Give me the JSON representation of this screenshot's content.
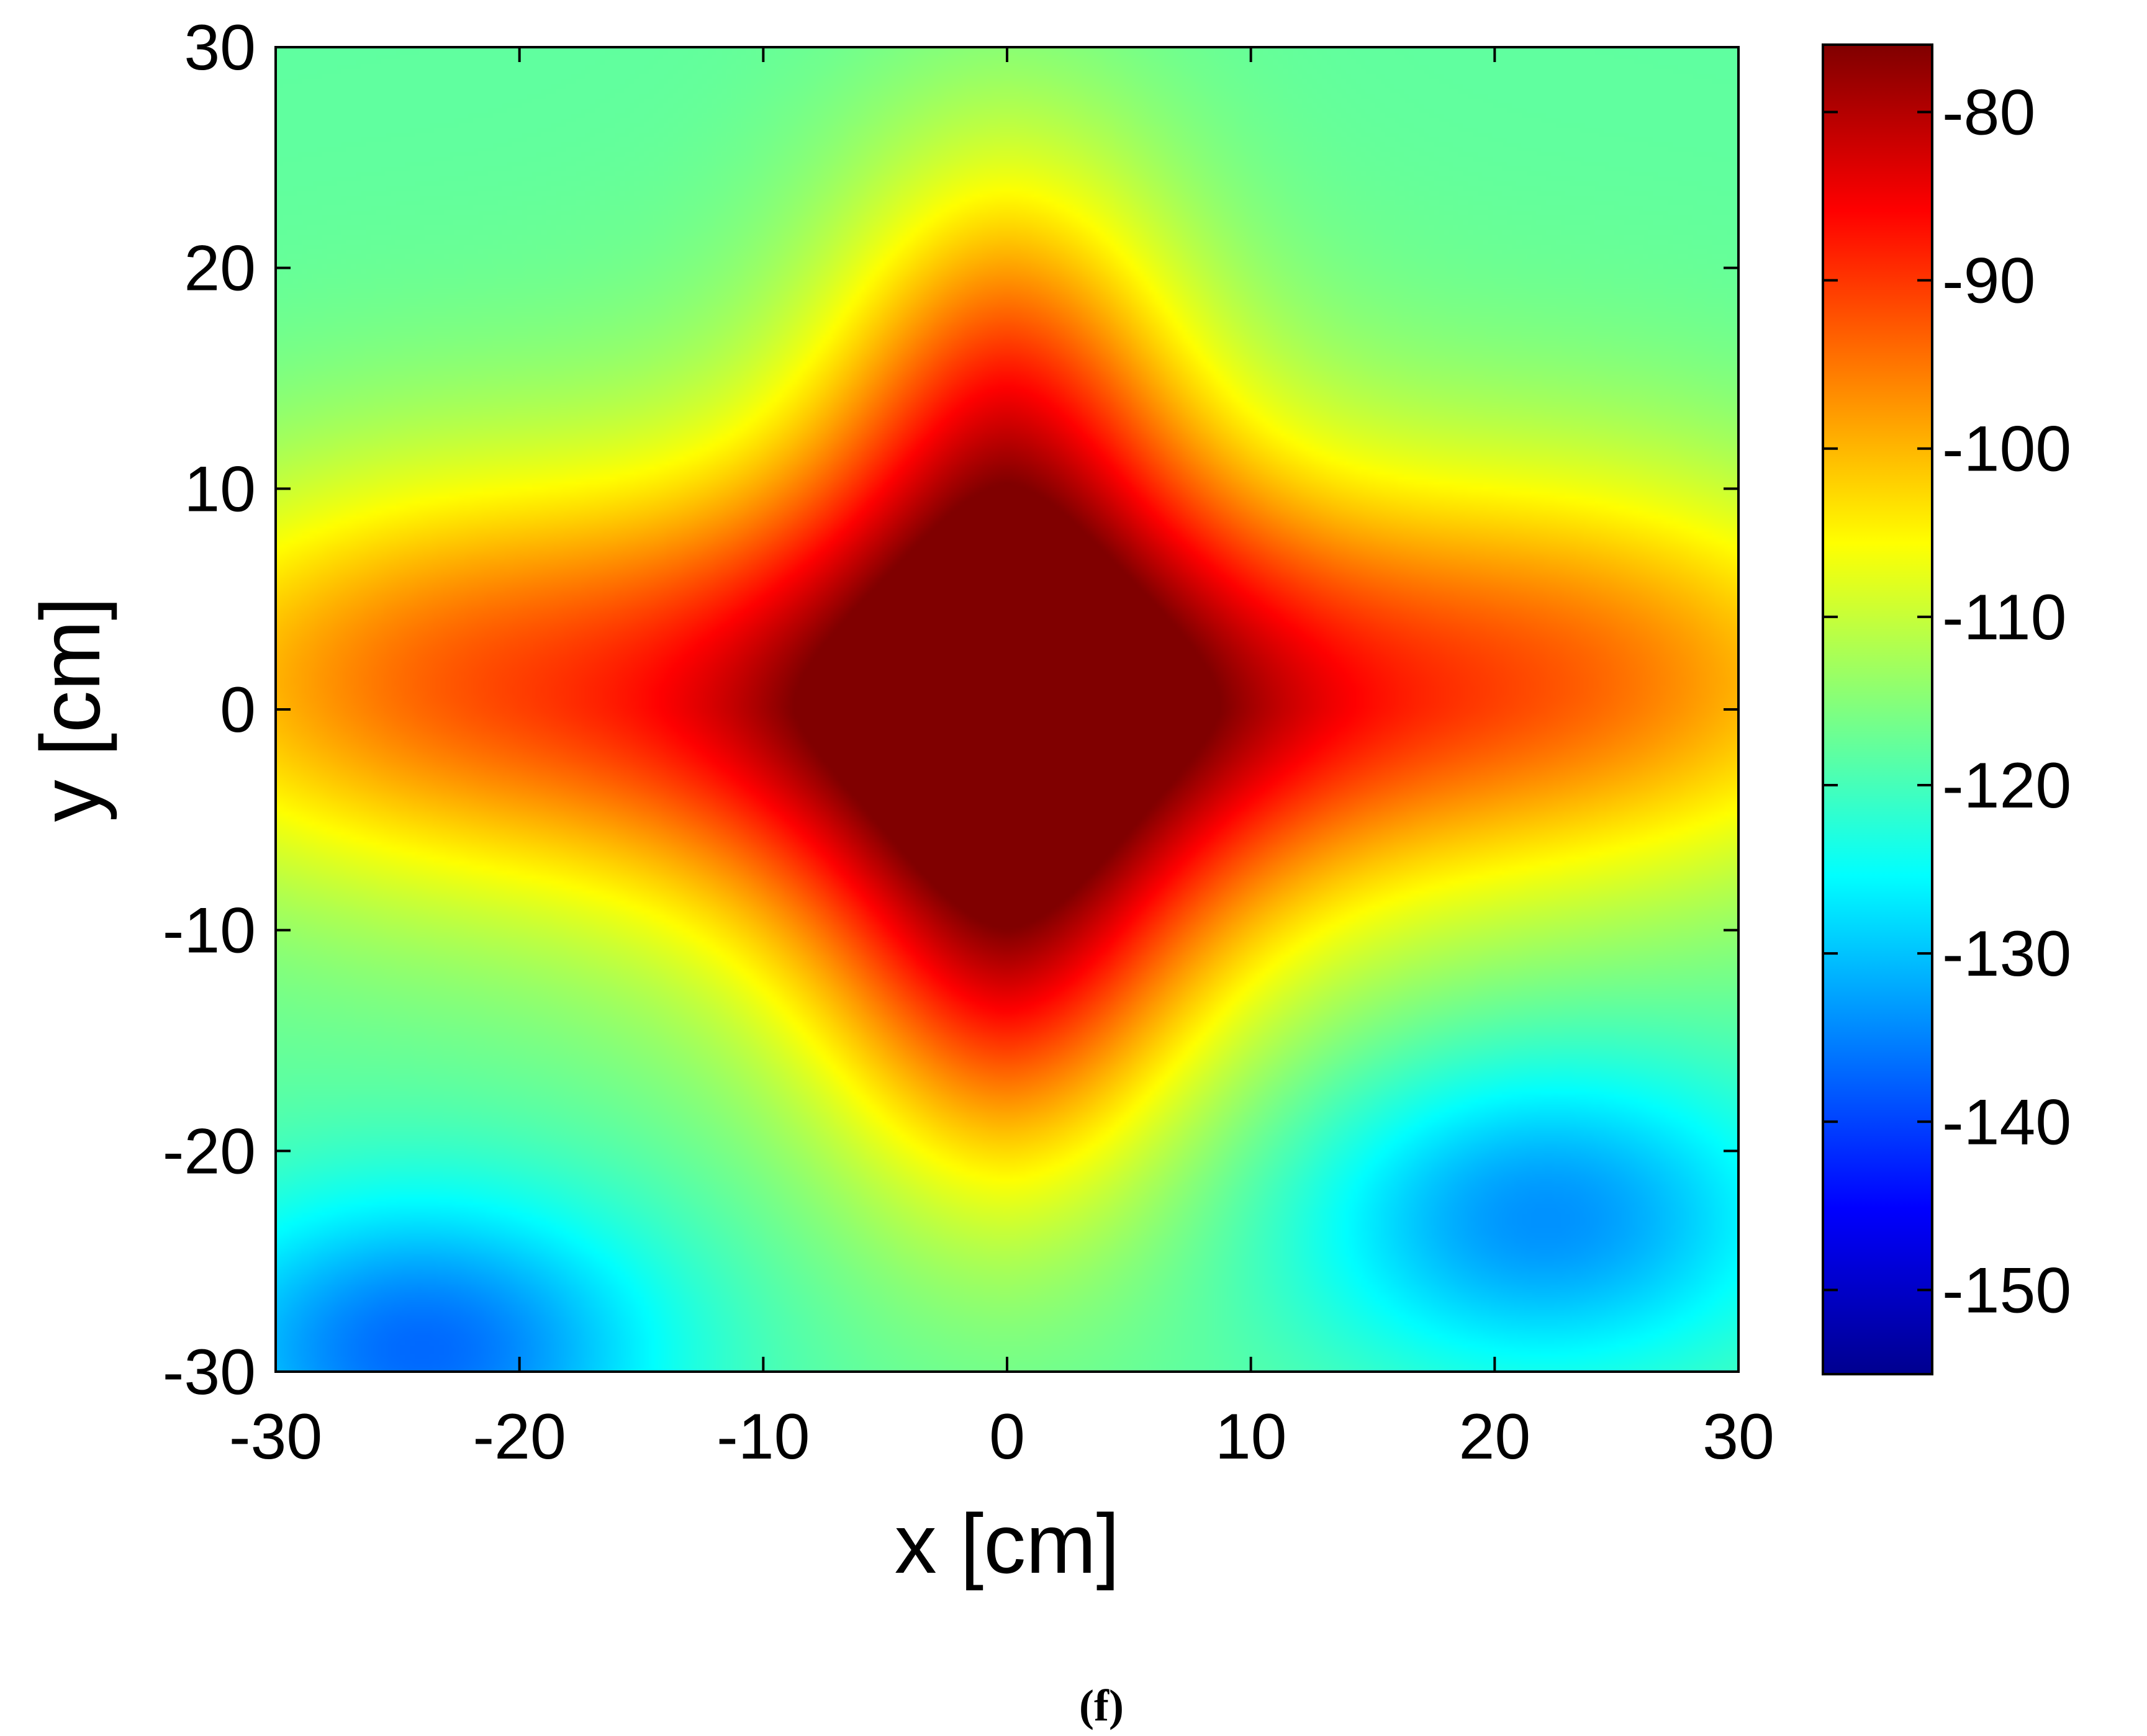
{
  "chart_data": {
    "type": "heatmap",
    "xlabel": "x [cm]",
    "ylabel": "y [cm]",
    "xlim": [
      -30,
      30
    ],
    "ylim": [
      -30,
      30
    ],
    "x_ticks": [
      -30,
      -20,
      -10,
      0,
      10,
      20,
      30
    ],
    "y_ticks": [
      30,
      20,
      10,
      0,
      -10,
      -20,
      -30
    ],
    "colorbar": {
      "colormap": "jet",
      "range": [
        -155,
        -76
      ],
      "ticks": [
        -80,
        -90,
        -100,
        -110,
        -120,
        -130,
        -140,
        -150
      ]
    },
    "field": {
      "description_units": "cm / colorbar units",
      "baseline": -118,
      "features": [
        {
          "kind": "peak",
          "x": 0,
          "y": 0,
          "value": -77
        },
        {
          "kind": "lobe",
          "x": -23,
          "y": 2,
          "value": -101
        },
        {
          "kind": "lobe",
          "x": 23,
          "y": 2,
          "value": -101
        },
        {
          "kind": "lobe",
          "x": 0,
          "y": 15,
          "value": -97
        },
        {
          "kind": "lobe",
          "x": 0,
          "y": -12,
          "value": -99
        },
        {
          "kind": "valley",
          "x": -24,
          "y": -29,
          "value": -137
        },
        {
          "kind": "valley",
          "x": 22,
          "y": -23,
          "value": -134
        }
      ]
    },
    "panel_label": "(f)"
  }
}
